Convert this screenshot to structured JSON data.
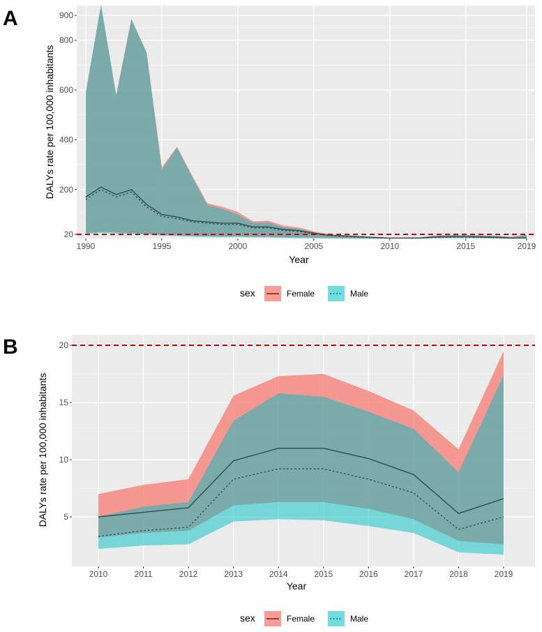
{
  "chart_data": [
    {
      "panel": "A",
      "type": "area",
      "xlabel": "Year",
      "ylabel": "DALYs rate per 100,000 inhabitants",
      "xlim": [
        1990,
        2019
      ],
      "ylim": [
        5,
        950
      ],
      "xticks": [
        1990,
        1995,
        2000,
        2005,
        2010,
        2015,
        2019
      ],
      "yticks": [
        20,
        200,
        400,
        600,
        800,
        900
      ],
      "reference_line": 20,
      "legend_title": "sex",
      "legend_position": "bottom",
      "x": [
        1990,
        1991,
        1992,
        1993,
        1994,
        1995,
        1996,
        1997,
        1998,
        1999,
        2000,
        2001,
        2002,
        2003,
        2004,
        2005,
        2006,
        2007,
        2008,
        2009,
        2010,
        2011,
        2012,
        2013,
        2014,
        2015,
        2016,
        2017,
        2018,
        2019
      ],
      "series": [
        {
          "name": "Female",
          "mean": [
            170,
            210,
            180,
            200,
            140,
            100,
            90,
            75,
            70,
            65,
            65,
            50,
            50,
            40,
            35,
            25,
            17,
            14,
            11,
            8,
            5.0,
            5.4,
            5.8,
            9.9,
            11.0,
            11.0,
            10.1,
            8.7,
            5.3,
            6.6
          ],
          "upper": [
            590,
            940,
            580,
            885,
            750,
            290,
            372,
            255,
            145,
            130,
            110,
            72,
            75,
            55,
            48,
            32,
            20,
            16,
            12,
            9,
            7.0,
            7.8,
            8.3,
            15.6,
            17.3,
            17.5,
            16.0,
            14.3,
            10.9,
            19.5
          ],
          "lower": [
            25,
            30,
            28,
            25,
            22,
            18,
            16,
            14,
            12,
            11,
            12,
            10,
            10,
            8,
            7,
            6,
            5,
            4,
            3.5,
            3.3,
            3.2,
            3.6,
            3.8,
            6.0,
            6.3,
            6.3,
            5.7,
            4.8,
            2.9,
            2.6
          ]
        },
        {
          "name": "Male",
          "mean": [
            160,
            200,
            170,
            190,
            130,
            92,
            84,
            70,
            65,
            60,
            60,
            46,
            46,
            36,
            32,
            22,
            15,
            12,
            9,
            6,
            3.3,
            3.8,
            4.1,
            8.3,
            9.2,
            9.2,
            8.3,
            7.1,
            3.9,
            5.0
          ],
          "upper": [
            590,
            945,
            578,
            885,
            750,
            280,
            368,
            250,
            138,
            122,
            100,
            66,
            68,
            48,
            42,
            28,
            18,
            14,
            10,
            8,
            5.0,
            5.9,
            6.3,
            13.4,
            15.8,
            15.5,
            14.2,
            12.7,
            8.9,
            17.4
          ],
          "lower": [
            22,
            26,
            24,
            22,
            19,
            15,
            13,
            11,
            10,
            9,
            10,
            8,
            8,
            6,
            5,
            4.5,
            4,
            3,
            2.5,
            2.3,
            2.2,
            2.5,
            2.6,
            4.6,
            4.8,
            4.7,
            4.2,
            3.6,
            1.9,
            1.7
          ]
        }
      ]
    },
    {
      "panel": "B",
      "type": "area",
      "xlabel": "Year",
      "ylabel": "DALYs rate per 100,000 inhabitants",
      "xlim": [
        2010,
        2019
      ],
      "ylim": [
        0.8,
        20.9
      ],
      "xticks": [
        2010,
        2011,
        2012,
        2013,
        2014,
        2015,
        2016,
        2017,
        2018,
        2019
      ],
      "yticks": [
        5,
        10,
        15,
        20
      ],
      "reference_line": 20,
      "legend_title": "sex",
      "legend_position": "bottom",
      "x": [
        2010,
        2011,
        2012,
        2013,
        2014,
        2015,
        2016,
        2017,
        2018,
        2019
      ],
      "series": [
        {
          "name": "Female",
          "mean": [
            5.0,
            5.4,
            5.8,
            9.9,
            11.0,
            11.0,
            10.1,
            8.7,
            5.3,
            6.6
          ],
          "upper": [
            7.0,
            7.8,
            8.3,
            15.6,
            17.3,
            17.5,
            16.0,
            14.3,
            10.9,
            19.5
          ],
          "lower": [
            3.2,
            3.6,
            3.8,
            6.0,
            6.3,
            6.3,
            5.7,
            4.8,
            2.9,
            2.6
          ]
        },
        {
          "name": "Male",
          "mean": [
            3.3,
            3.8,
            4.1,
            8.3,
            9.2,
            9.2,
            8.3,
            7.1,
            3.9,
            5.0
          ],
          "upper": [
            5.0,
            5.9,
            6.3,
            13.4,
            15.8,
            15.5,
            14.2,
            12.7,
            8.9,
            17.4
          ],
          "lower": [
            2.2,
            2.5,
            2.6,
            4.6,
            4.8,
            4.7,
            4.2,
            3.6,
            1.9,
            1.7
          ]
        }
      ]
    }
  ],
  "colors": {
    "female": "#F8766D",
    "male": "#00BFC4",
    "reference": "#CC0000",
    "panel_bg": "#EBEBEB",
    "line": "#2F4F4F"
  }
}
